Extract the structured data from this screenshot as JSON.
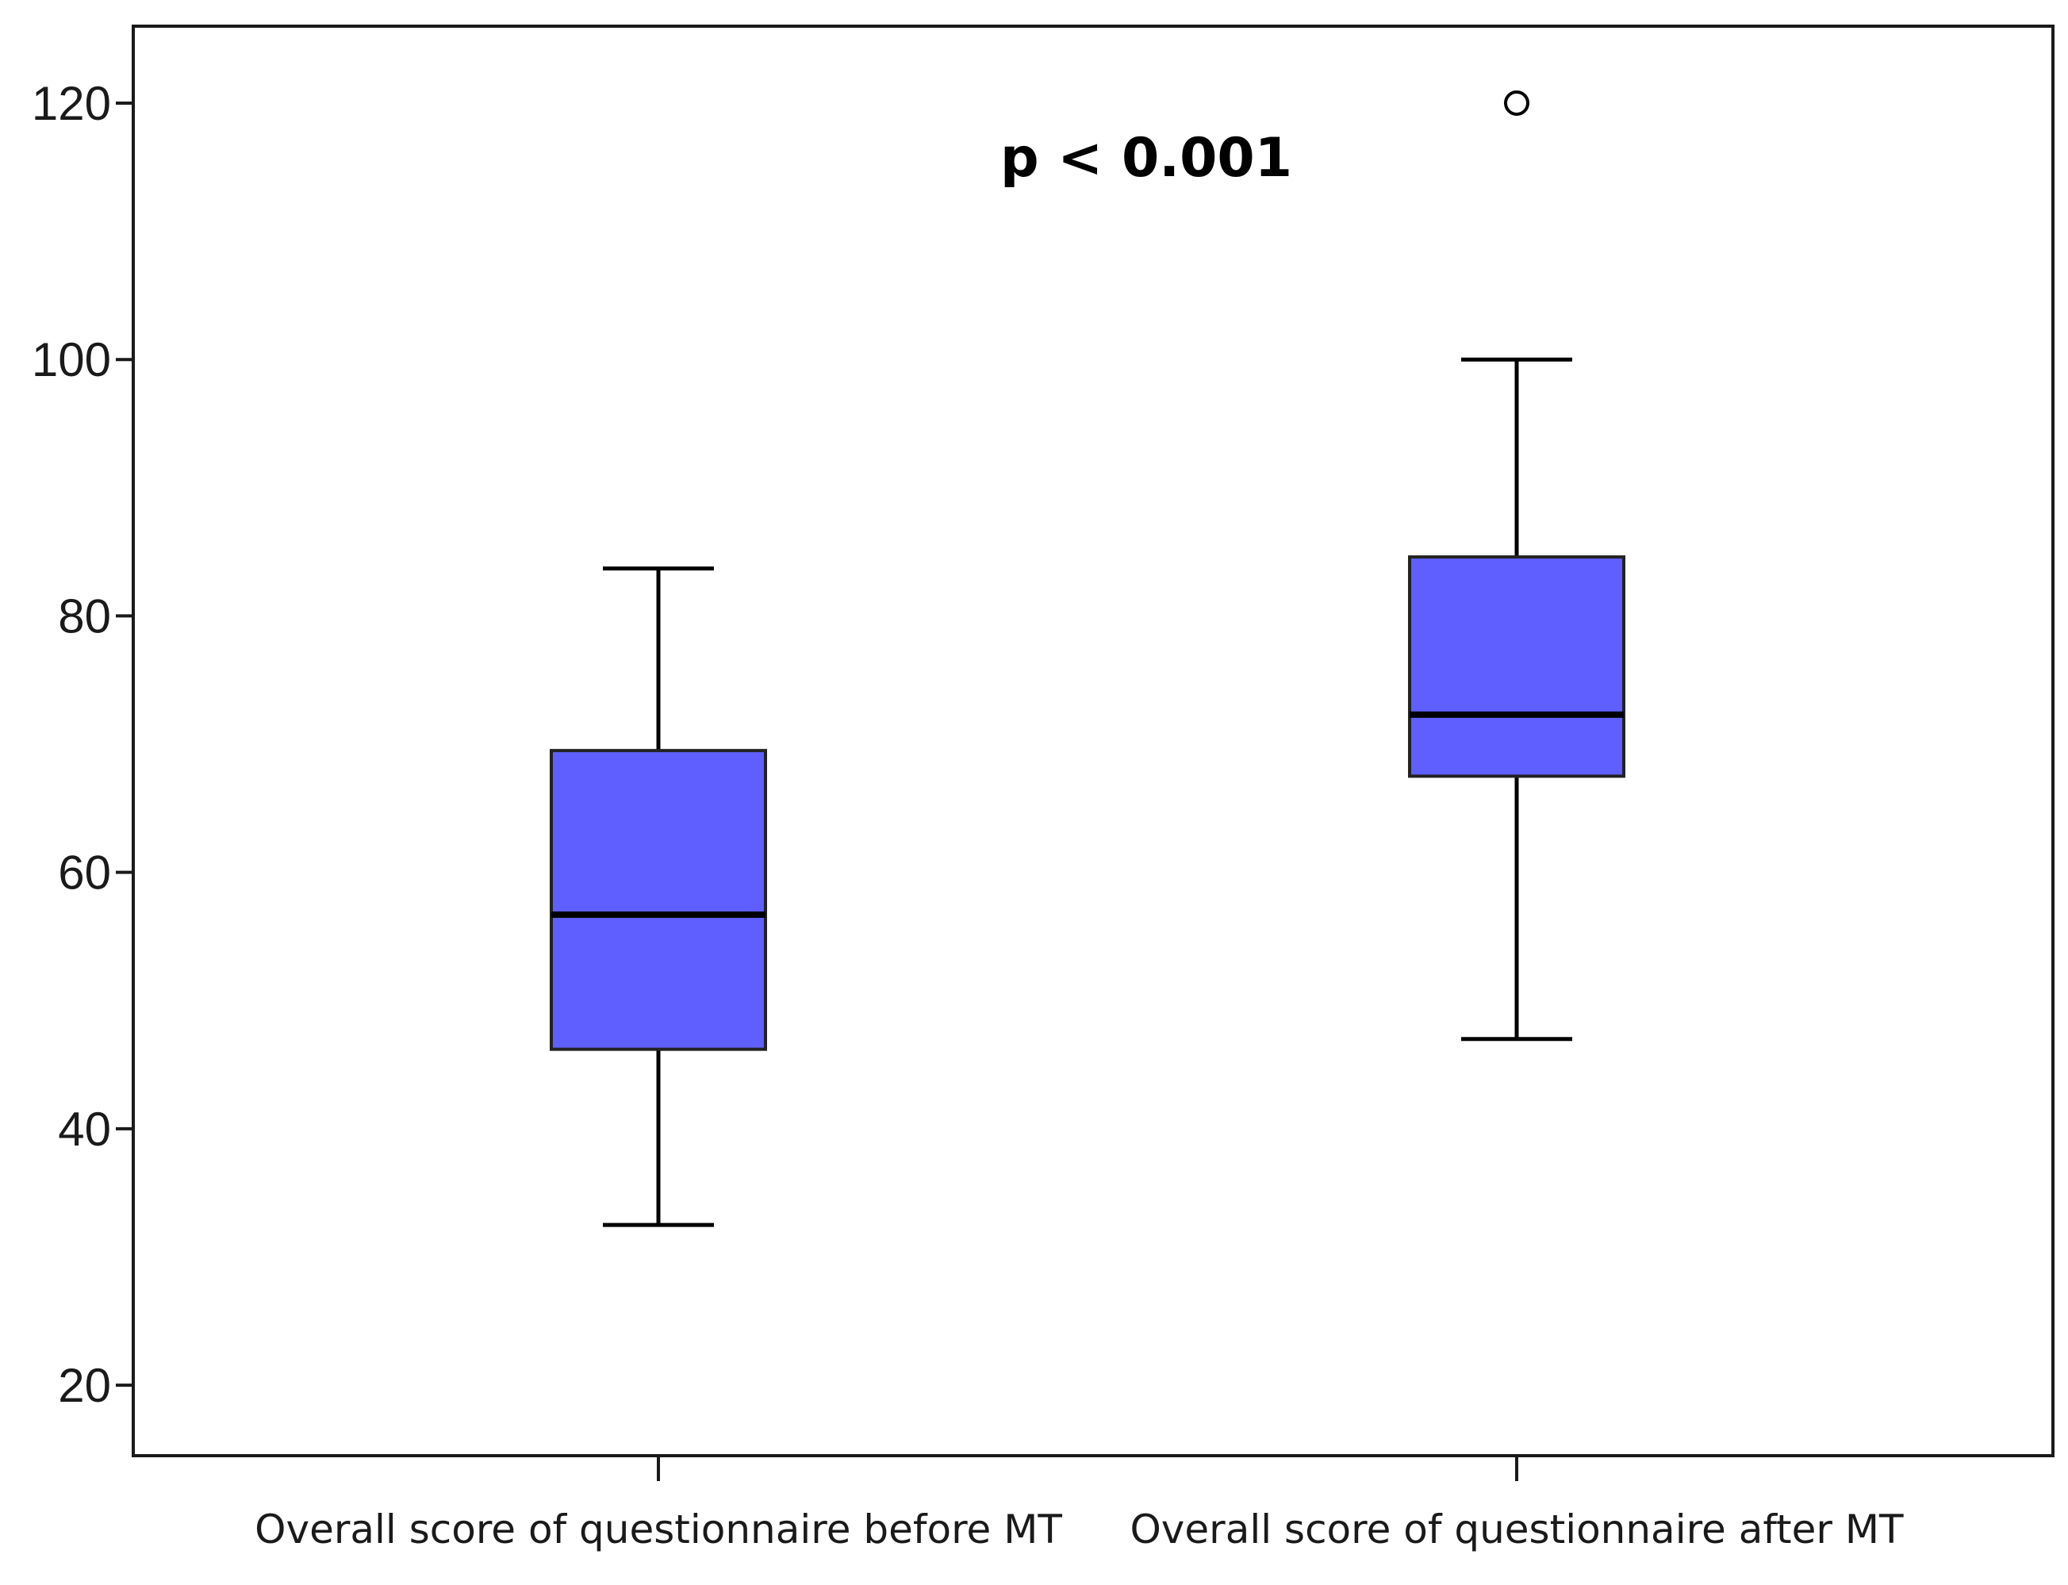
{
  "chart_data": {
    "type": "boxplot",
    "title": "",
    "xlabel": "",
    "ylabel": "",
    "categories": [
      "Overall score of questionnaire before MT",
      "Overall score of questionnaire after MT"
    ],
    "yticks": [
      20,
      40,
      60,
      80,
      100,
      120
    ],
    "ylim": [
      14.5,
      126
    ],
    "boxes": [
      {
        "name": "Overall score of questionnaire before MT",
        "whisker_low": 32.5,
        "q1": 46.2,
        "median": 56.7,
        "q3": 69.5,
        "whisker_high": 83.7,
        "outliers": []
      },
      {
        "name": "Overall score of questionnaire after MT",
        "whisker_low": 47.0,
        "q1": 67.5,
        "median": 72.3,
        "q3": 84.6,
        "whisker_high": 100.0,
        "outliers": [
          120.0
        ]
      }
    ],
    "annotation": "p < 0.001",
    "grid": false,
    "colors": {
      "box_fill": "#5f5fff",
      "line": "#000000",
      "frame": "#1a1a1a"
    }
  }
}
